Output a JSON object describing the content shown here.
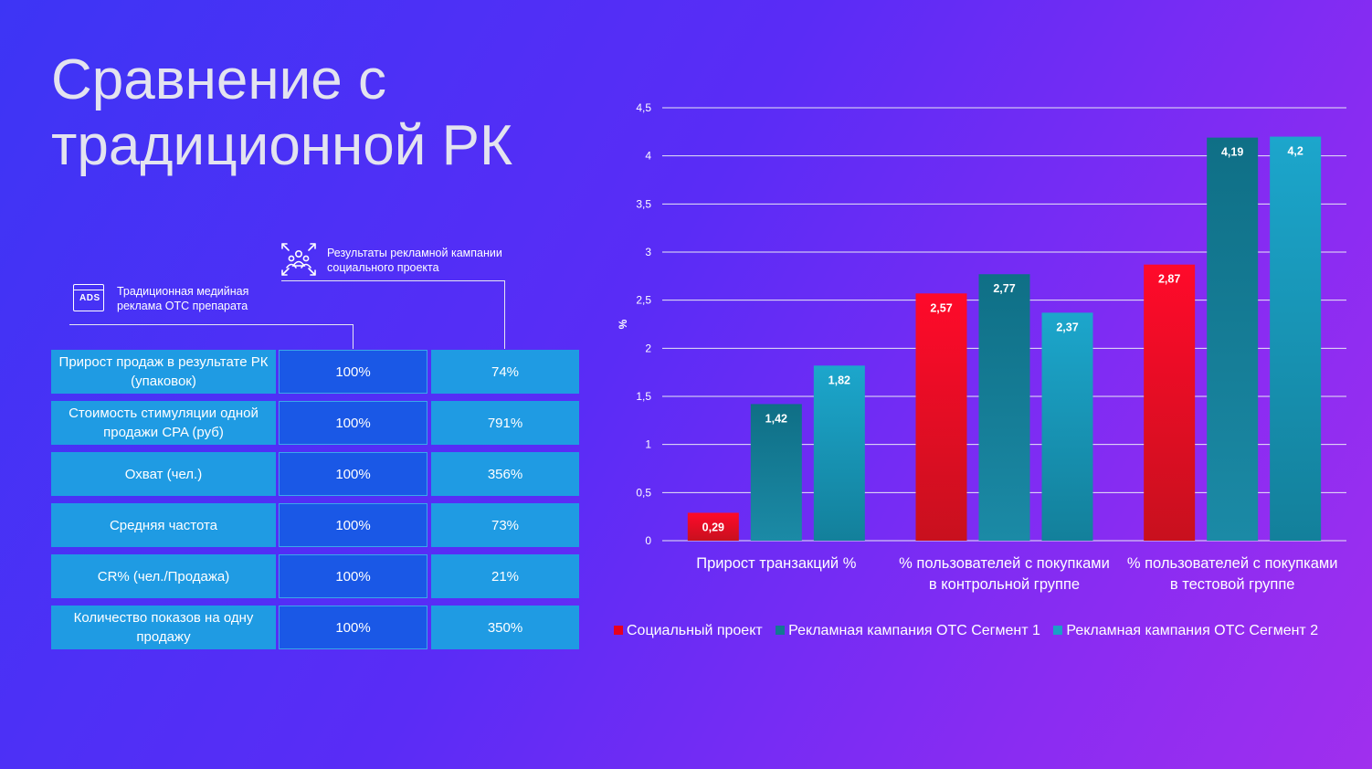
{
  "slide": {
    "title": "Сравнение с традиционной РК"
  },
  "table": {
    "header_traditional": "Традиционная медийная реклама ОТС препарата",
    "header_social": "Результаты рекламной кампании социального проекта",
    "rows": [
      {
        "metric": "Прирост продаж в результате РК (упаковок)",
        "traditional": "100%",
        "social": "74%"
      },
      {
        "metric": "Стоимость стимуляции одной продажи CPA (руб)",
        "traditional": "100%",
        "social": "791%"
      },
      {
        "metric": "Охват (чел.)",
        "traditional": "100%",
        "social": "356%"
      },
      {
        "metric": "Средняя частота",
        "traditional": "100%",
        "social": "73%"
      },
      {
        "metric": "CR% (чел./Продажа)",
        "traditional": "100%",
        "social": "21%"
      },
      {
        "metric": "Количество показов на одну продажу",
        "traditional": "100%",
        "social": "350%"
      }
    ]
  },
  "icons": {
    "ads": "ads-browser-icon",
    "ads_text": "ADS",
    "people": "people-group-icon"
  },
  "chart_data": {
    "type": "bar",
    "ylabel": "%",
    "ylim": [
      0,
      4.5
    ],
    "yticks": [
      "0",
      "0,5",
      "1",
      "1,5",
      "2",
      "2,5",
      "3",
      "3,5",
      "4",
      "4,5"
    ],
    "ytick_values": [
      0,
      0.5,
      1,
      1.5,
      2,
      2.5,
      3,
      3.5,
      4,
      4.5
    ],
    "categories": [
      [
        "Прирост транзакций %"
      ],
      [
        "% пользователей с покупками",
        "в контрольной группе"
      ],
      [
        "% пользователей с покупками",
        "в тестовой группе"
      ]
    ],
    "series": [
      {
        "name": "Социальный проект",
        "color": "#e8001e",
        "values": [
          0.29,
          2.57,
          2.87
        ],
        "labels": [
          "0,29",
          "2,57",
          "2,87"
        ]
      },
      {
        "name": "Рекламная кампания ОТС Сегмент 1",
        "color": "#137892",
        "values": [
          1.42,
          2.77,
          4.19
        ],
        "labels": [
          "1,42",
          "2,77",
          "4,19"
        ]
      },
      {
        "name": "Рекламная кампания ОТС Сегмент 2",
        "color": "#1a9fc6",
        "values": [
          1.82,
          2.37,
          4.2
        ],
        "labels": [
          "1,82",
          "2,37",
          "4,2"
        ]
      }
    ],
    "grid": true,
    "legend_position": "bottom"
  }
}
